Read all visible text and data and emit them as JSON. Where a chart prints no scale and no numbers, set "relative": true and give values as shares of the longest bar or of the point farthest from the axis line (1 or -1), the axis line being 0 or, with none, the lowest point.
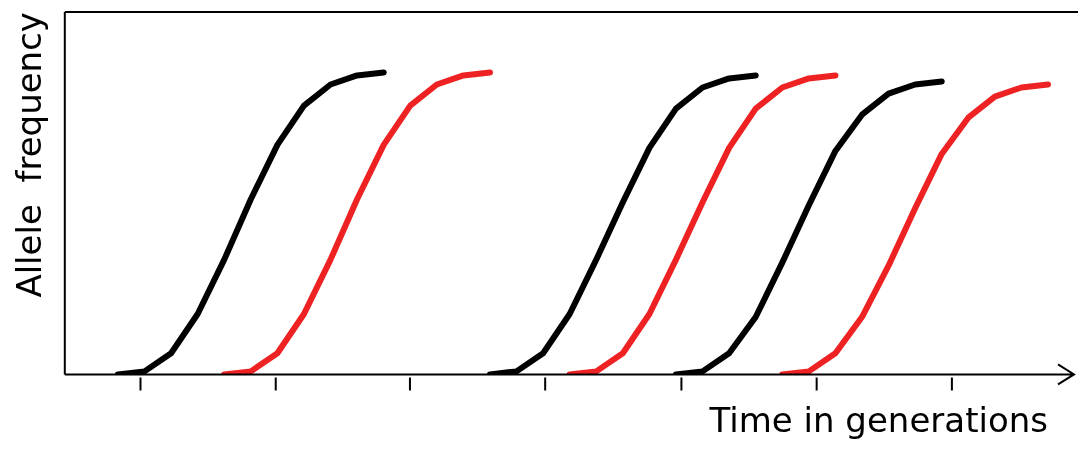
{
  "chart_data": {
    "type": "line",
    "relative": true,
    "xlabel": "Time in generations",
    "ylabel": "Allele  frequency",
    "categories": [
      null,
      null,
      null,
      null,
      null,
      null,
      null,
      null,
      null,
      null,
      null,
      null,
      null,
      null,
      null,
      null,
      null,
      null,
      null,
      null,
      null,
      null,
      null,
      null,
      null,
      null,
      null,
      null,
      null,
      null,
      null,
      null,
      null,
      null,
      null,
      null,
      null,
      null
    ],
    "grid": false,
    "legend": false,
    "marker": "none",
    "line_style": "solid",
    "series": [
      {
        "color": "#000000",
        "values": [
          null,
          null,
          0,
          0.01,
          0.07,
          0.2,
          0.38,
          0.58,
          0.76,
          0.89,
          0.96,
          0.99,
          1.0,
          null,
          null,
          null,
          null,
          null,
          null,
          null,
          null,
          null,
          null,
          null,
          null,
          null,
          null,
          null,
          null,
          null,
          null,
          null,
          null,
          null,
          null,
          null,
          null,
          null
        ]
      },
      {
        "color": "#ee2222",
        "values": [
          null,
          null,
          null,
          null,
          null,
          null,
          0,
          0.01,
          0.07,
          0.2,
          0.38,
          0.58,
          0.76,
          0.89,
          0.96,
          0.99,
          1.0,
          null,
          null,
          null,
          null,
          null,
          null,
          null,
          null,
          null,
          null,
          null,
          null,
          null,
          null,
          null,
          null,
          null,
          null,
          null,
          null,
          null
        ]
      },
      {
        "color": "#000000",
        "values": [
          null,
          null,
          null,
          null,
          null,
          null,
          null,
          null,
          null,
          null,
          null,
          null,
          null,
          null,
          null,
          null,
          0,
          0.01,
          0.07,
          0.2,
          0.38,
          0.57,
          0.75,
          0.88,
          0.95,
          0.98,
          0.99,
          null,
          null,
          null,
          null,
          null,
          null,
          null,
          null,
          null,
          null,
          null
        ]
      },
      {
        "color": "#ee2222",
        "values": [
          null,
          null,
          null,
          null,
          null,
          null,
          null,
          null,
          null,
          null,
          null,
          null,
          null,
          null,
          null,
          null,
          null,
          null,
          null,
          0,
          0.01,
          0.07,
          0.2,
          0.38,
          0.57,
          0.75,
          0.88,
          0.95,
          0.98,
          0.99,
          null,
          null,
          null,
          null,
          null,
          null,
          null,
          null
        ]
      },
      {
        "color": "#000000",
        "values": [
          null,
          null,
          null,
          null,
          null,
          null,
          null,
          null,
          null,
          null,
          null,
          null,
          null,
          null,
          null,
          null,
          null,
          null,
          null,
          null,
          null,
          null,
          null,
          0,
          0.01,
          0.07,
          0.19,
          0.37,
          0.56,
          0.74,
          0.86,
          0.93,
          0.96,
          0.97,
          null,
          null,
          null,
          null
        ]
      },
      {
        "color": "#ee2222",
        "values": [
          null,
          null,
          null,
          null,
          null,
          null,
          null,
          null,
          null,
          null,
          null,
          null,
          null,
          null,
          null,
          null,
          null,
          null,
          null,
          null,
          null,
          null,
          null,
          null,
          null,
          null,
          null,
          0,
          0.01,
          0.07,
          0.19,
          0.36,
          0.55,
          0.73,
          0.85,
          0.92,
          0.95,
          0.96
        ]
      }
    ]
  }
}
